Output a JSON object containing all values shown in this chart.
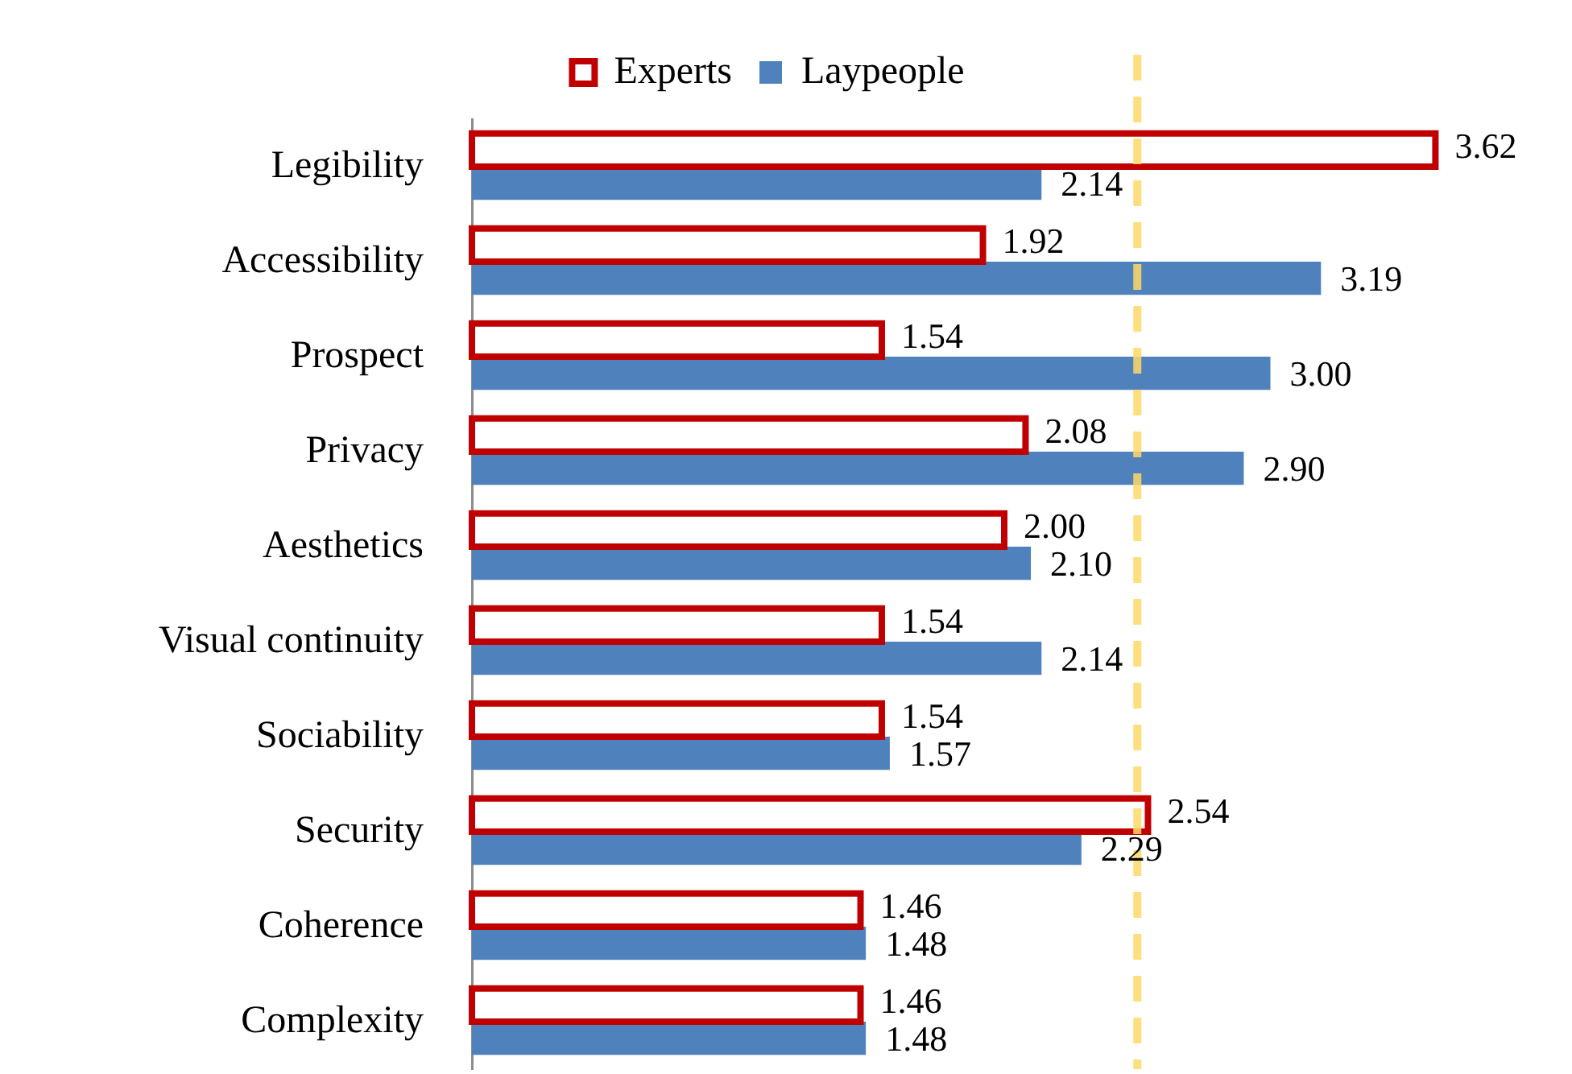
{
  "chart_data": {
    "type": "bar",
    "orientation": "horizontal",
    "categories": [
      "Legibility",
      "Accessibility",
      "Prospect",
      "Privacy",
      "Aesthetics",
      "Visual continuity",
      "Sociability",
      "Security",
      "Coherence",
      "Complexity"
    ],
    "series": [
      {
        "name": "Experts",
        "color": "#c00000",
        "values": [
          3.62,
          1.92,
          1.54,
          2.08,
          2.0,
          1.54,
          1.54,
          2.54,
          1.46,
          1.46
        ],
        "value_labels": [
          "3.62",
          "1.92",
          "1.54",
          "2.08",
          "2.00",
          "1.54",
          "1.54",
          "2.54",
          "1.46",
          "1.46"
        ]
      },
      {
        "name": "Laypeople",
        "color": "#4f81bd",
        "values": [
          2.14,
          3.19,
          3.0,
          2.9,
          2.1,
          2.14,
          1.57,
          2.29,
          1.48,
          1.48
        ],
        "value_labels": [
          "2.14",
          "3.19",
          "3.00",
          "2.90",
          "2.10",
          "2.14",
          "1.57",
          "2.29",
          "1.48",
          "1.48"
        ]
      }
    ],
    "tick_labels": "y",
    "legend": "top",
    "ref_lines": [
      {
        "axis": "x",
        "value": 2.5,
        "color": "#ffd966",
        "line_style": "dashed"
      }
    ]
  }
}
